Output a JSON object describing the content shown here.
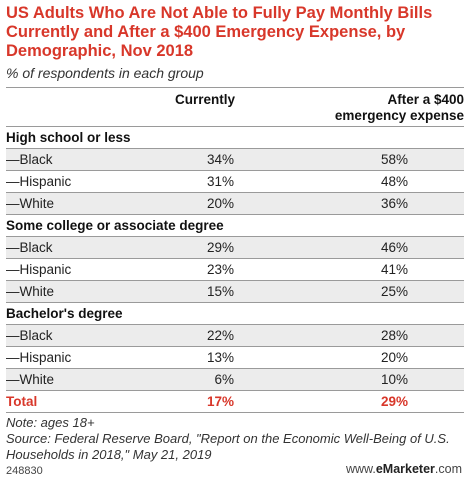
{
  "title": "US Adults Who Are Not Able to Fully Pay Monthly Bills Currently and After a $400 Emergency Expense, by Demographic, Nov 2018",
  "subtitle": "% of respondents in each group",
  "chart_data": {
    "type": "table",
    "columns": [
      "Currently",
      "After a $400\nemergency expense"
    ],
    "groups": [
      {
        "name": "High school or less",
        "rows": [
          {
            "label": "—Black",
            "currently": "34%",
            "after": "58%"
          },
          {
            "label": "—Hispanic",
            "currently": "31%",
            "after": "48%"
          },
          {
            "label": "—White",
            "currently": "20%",
            "after": "36%"
          }
        ]
      },
      {
        "name": "Some college or associate degree",
        "rows": [
          {
            "label": "—Black",
            "currently": "29%",
            "after": "46%"
          },
          {
            "label": "—Hispanic",
            "currently": "23%",
            "after": "41%"
          },
          {
            "label": "—White",
            "currently": "15%",
            "after": "25%"
          }
        ]
      },
      {
        "name": "Bachelor's degree",
        "rows": [
          {
            "label": "—Black",
            "currently": "22%",
            "after": "28%"
          },
          {
            "label": "—Hispanic",
            "currently": "13%",
            "after": "20%"
          },
          {
            "label": "—White",
            "currently": "6%",
            "after": "10%"
          }
        ]
      }
    ],
    "total": {
      "label": "Total",
      "currently": "17%",
      "after": "29%"
    }
  },
  "notes": {
    "note": "Note: ages 18+",
    "source": "Source: Federal Reserve Board, \"Report on the Economic Well-Being of U.S. Households in 2018,\" May 21, 2019"
  },
  "footer": {
    "id": "248830",
    "brand_prefix": "www.",
    "brand_name": "eMarketer",
    "brand_suffix": ".com"
  },
  "colors": {
    "accent": "#d8372a",
    "stripe": "#ececec",
    "rule": "#9a9a9a"
  }
}
